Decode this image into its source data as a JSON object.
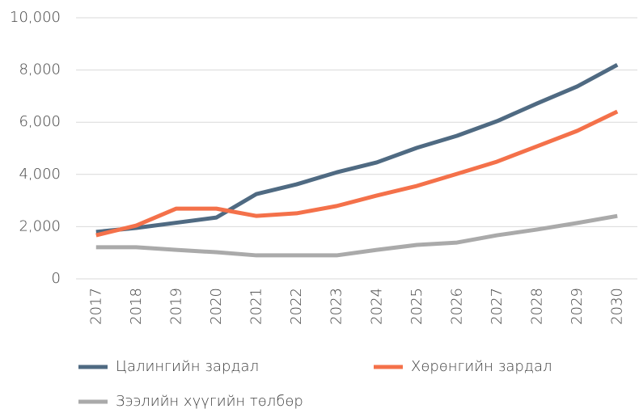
{
  "chart_data": {
    "type": "line",
    "categories": [
      "2017",
      "2018",
      "2019",
      "2020",
      "2021",
      "2022",
      "2023",
      "2024",
      "2025",
      "2026",
      "2027",
      "2028",
      "2029",
      "2030"
    ],
    "series": [
      {
        "name": "Цалингийн зардал",
        "color": "#4f6a82",
        "values": [
          1800,
          1950,
          2150,
          2350,
          3250,
          3620,
          4080,
          4460,
          5020,
          5480,
          6040,
          6720,
          7370,
          8200
        ]
      },
      {
        "name": "Хөрөнгийн зардал",
        "color": "#f4714a",
        "values": [
          1670,
          2040,
          2690,
          2690,
          2410,
          2510,
          2790,
          3190,
          3560,
          4020,
          4490,
          5080,
          5670,
          6410
        ]
      },
      {
        "name": "Зээлийн хүүгийн төлбөр",
        "color": "#aaaaaa",
        "values": [
          1210,
          1210,
          1110,
          1020,
          900,
          900,
          900,
          1110,
          1300,
          1390,
          1670,
          1890,
          2140,
          2410
        ]
      }
    ],
    "ylim": [
      0,
      10000
    ],
    "yticks": [
      0,
      {
        "value": 2000,
        "label": "2,000"
      },
      {
        "value": 4000,
        "label": "4,000"
      },
      {
        "value": 6000,
        "label": "6,000"
      },
      {
        "value": 8000,
        "label": "8,000"
      },
      {
        "value": 10000,
        "label": "10,000"
      }
    ],
    "grid": true
  }
}
